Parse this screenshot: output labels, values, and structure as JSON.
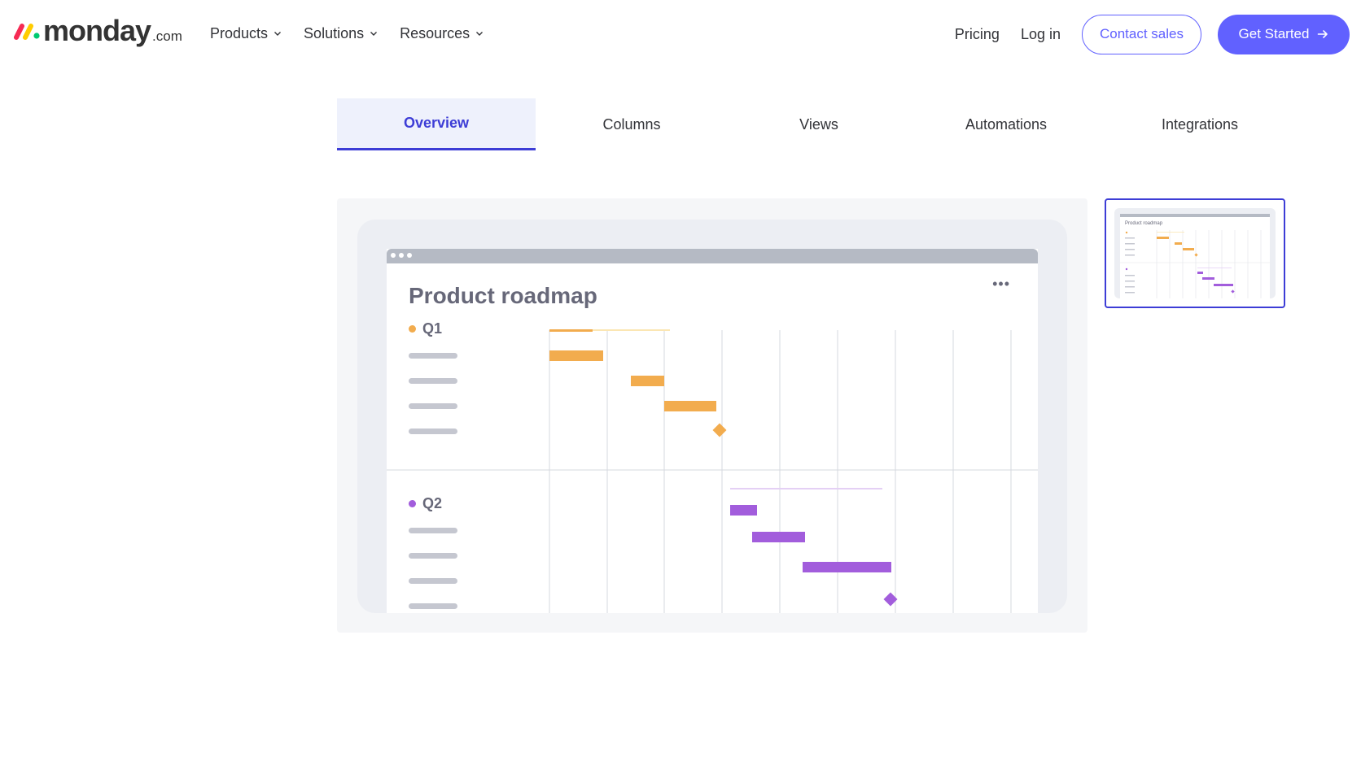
{
  "header": {
    "logo": {
      "word": "monday",
      "tld": ".com",
      "colors": [
        "#f62b54",
        "#ffcc00",
        "#00ca72"
      ]
    },
    "nav": [
      {
        "label": "Products",
        "icon": "chevron-down-icon"
      },
      {
        "label": "Solutions",
        "icon": "chevron-down-icon"
      },
      {
        "label": "Resources",
        "icon": "chevron-down-icon"
      }
    ],
    "pricing": "Pricing",
    "login": "Log in",
    "contact_sales": "Contact sales",
    "get_started": "Get Started",
    "get_started_icon": "arrow-right-icon"
  },
  "tabs": [
    {
      "label": "Overview",
      "active": true
    },
    {
      "label": "Columns",
      "active": false
    },
    {
      "label": "Views",
      "active": false
    },
    {
      "label": "Automations",
      "active": false
    },
    {
      "label": "Integrations",
      "active": false
    }
  ],
  "preview": {
    "title": "Product roadmap",
    "more_icon": "more-horizontal-icon",
    "groups": [
      {
        "label": "Q1",
        "color": "#f2ac4e",
        "milestone": "diamond"
      },
      {
        "label": "Q2",
        "color": "#a25ddc",
        "milestone": "diamond"
      }
    ]
  },
  "thumbnail": {
    "title": "Product roadmap",
    "selected": true
  },
  "colors": {
    "accent": "#6161ff",
    "tab_active": "#3d3dd6",
    "q1": "#f2ac4e",
    "q2": "#a25ddc"
  }
}
